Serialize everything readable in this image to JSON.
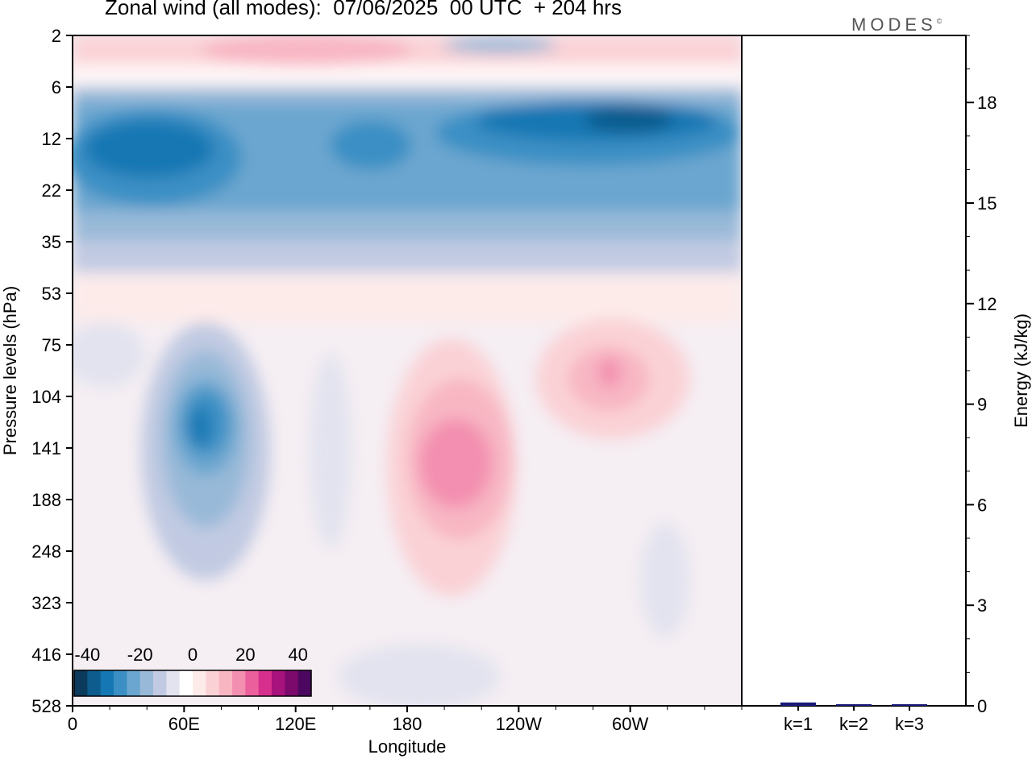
{
  "title": "Zonal wind (all modes):  07/06/2025  00 UTC  + 204 hrs",
  "brand": "MODES",
  "brand_mark": "©",
  "colors": {
    "palette": [
      "#0b3a5c",
      "#0d5c8d",
      "#1577b3",
      "#3b8fc4",
      "#6aa6cf",
      "#98b9d8",
      "#c1cae2",
      "#e2e3ef",
      "#ffffff",
      "#fdebea",
      "#fad2d6",
      "#f8b6c3",
      "#f38fb0",
      "#ec5f9d",
      "#d62f8d",
      "#a8127c",
      "#7c0a6c",
      "#4c0860"
    ]
  },
  "chart_data": [
    {
      "type": "heatmap",
      "title": "Zonal wind (all modes):  07/06/2025  00 UTC  + 204 hrs",
      "xlabel": "Longitude",
      "ylabel": "Pressure levels (hPa)",
      "x_ticks": [
        "0",
        "60E",
        "120E",
        "180",
        "120W",
        "60W"
      ],
      "y_ticks": [
        "2",
        "6",
        "12",
        "22",
        "35",
        "53",
        "75",
        "104",
        "141",
        "188",
        "248",
        "323",
        "416",
        "528"
      ],
      "colorbar": {
        "ticks": [
          "-40",
          "-20",
          "0",
          "20",
          "40"
        ],
        "range": [
          -45,
          45
        ],
        "step": 5
      },
      "features": [
        {
          "lon": 45,
          "lev": "12",
          "value": -35
        },
        {
          "lon": 270,
          "lev": "12",
          "value": -40
        },
        {
          "lon": 70,
          "lev": "141",
          "value": -30
        },
        {
          "lon": 195,
          "lev": "141",
          "value": 15
        },
        {
          "lon": 290,
          "lev": "104",
          "value": 15
        },
        {
          "lon": 150,
          "lev": "2",
          "value": 8
        }
      ]
    },
    {
      "type": "bar",
      "categories": [
        "k=1",
        "k=2",
        "k=3"
      ],
      "values": [
        0.1,
        0.05,
        0.02
      ],
      "ylabel": "Energy (kJ/kg)",
      "ylim": [
        0,
        20
      ],
      "y_ticks": [
        "0",
        "3",
        "6",
        "9",
        "12",
        "15",
        "18"
      ]
    }
  ]
}
